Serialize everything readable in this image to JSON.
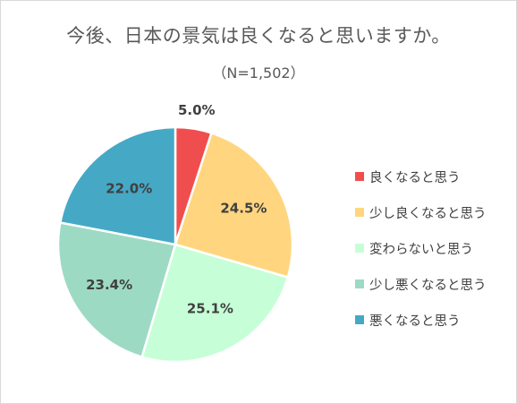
{
  "chart_data": {
    "type": "pie",
    "title": "今後、日本の景気は良くなると思いますか。",
    "subtitle": "（N=1,502）",
    "legend_position": "right",
    "categories": [
      "良くなると思う",
      "少し良くなると思う",
      "変わらないと思う",
      "少し悪くなると思う",
      "悪くなると思う"
    ],
    "values": [
      5.0,
      24.5,
      25.1,
      23.4,
      22.0
    ],
    "value_labels": [
      "5.0%",
      "24.5%",
      "25.1%",
      "23.4%",
      "22.0%"
    ],
    "colors": [
      "#f04e4e",
      "#ffd67f",
      "#c6ffd7",
      "#9ddac4",
      "#45a9c6"
    ]
  }
}
